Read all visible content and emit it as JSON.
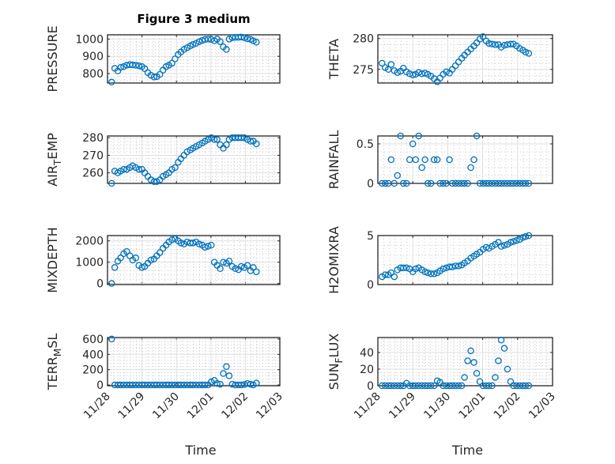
{
  "title": "Figure 3 medium",
  "colors": {
    "marker": "#0072BD",
    "axis": "#262626",
    "grid": "#DFDFDF"
  },
  "chart_data": [
    {
      "type": "scatter",
      "name": "pressure",
      "ylabel": "PRESSURE",
      "xlabel": "",
      "ylim": [
        745,
        1025
      ],
      "yticks": [
        800,
        900,
        1000
      ],
      "grid": true,
      "values": [
        750,
        830,
        815,
        835,
        840,
        848,
        852,
        850,
        848,
        845,
        840,
        828,
        805,
        790,
        780,
        782,
        795,
        820,
        840,
        848,
        860,
        885,
        910,
        925,
        940,
        950,
        960,
        968,
        975,
        985,
        992,
        998,
        1000,
        998,
        990,
        1000,
        985,
        955,
        940,
        1000,
        1008,
        1010,
        1010,
        1012,
        1008,
        1002,
        998,
        990,
        982
      ]
    },
    {
      "type": "scatter",
      "name": "theta",
      "ylabel": "THETA",
      "xlabel": "",
      "ylim": [
        272.8,
        280.6
      ],
      "yticks": [
        275,
        280
      ],
      "grid": true,
      "values": [
        276,
        275.3,
        275,
        275.8,
        274.8,
        274.5,
        274.7,
        275.2,
        274.6,
        274.3,
        274.1,
        274.2,
        274.5,
        274.3,
        274.4,
        274.2,
        273.9,
        273.5,
        273.0,
        273.6,
        274.2,
        274.6,
        274.4,
        275,
        275.6,
        276.2,
        276.8,
        277.3,
        277.8,
        278.3,
        278.8,
        279.3,
        279.9,
        280.3,
        279.6,
        279.2,
        279.1,
        279,
        279,
        278.6,
        278.9,
        279,
        279.1,
        279.1,
        278.8,
        278.4,
        278.1,
        277.8,
        277.6
      ]
    },
    {
      "type": "scatter",
      "name": "air-temp",
      "ylabel": "AIR_TEMP",
      "xlabel": "",
      "ylim": [
        254,
        281
      ],
      "yticks": [
        260,
        270,
        280
      ],
      "grid": true,
      "values": [
        254,
        261,
        260,
        261,
        262,
        262,
        263,
        264,
        263,
        262,
        262,
        260,
        258,
        256,
        255,
        255,
        256,
        258,
        259,
        260,
        262,
        263,
        266,
        268,
        270,
        272,
        273,
        274,
        275,
        276,
        277,
        278,
        279,
        280,
        279,
        279,
        276,
        274,
        276,
        279,
        280,
        280,
        280,
        280,
        280,
        279,
        278,
        278,
        276.5
      ]
    },
    {
      "type": "scatter",
      "name": "rainfall",
      "ylabel": "RAINFALL",
      "xlabel": "",
      "ylim": [
        0,
        0.6
      ],
      "yticks": [
        0,
        0.5
      ],
      "grid": true,
      "values": [
        0,
        0,
        0,
        0.3,
        0,
        0.1,
        0.6,
        0,
        0,
        0.3,
        0.5,
        0.3,
        0.6,
        0.2,
        0.3,
        0,
        0,
        0.3,
        0.3,
        0,
        0,
        0,
        0.3,
        0,
        0,
        0,
        0,
        0,
        0,
        0.2,
        0.3,
        0.6,
        0,
        0,
        0,
        0,
        0,
        0,
        0,
        0,
        0,
        0,
        0,
        0,
        0,
        0,
        0,
        0,
        0
      ]
    },
    {
      "type": "scatter",
      "name": "mixdepth",
      "ylabel": "MIXDEPTH",
      "xlabel": "",
      "ylim": [
        -50,
        2250
      ],
      "yticks": [
        0,
        1000,
        2000
      ],
      "grid": true,
      "values": [
        0,
        750,
        1050,
        1200,
        1400,
        1500,
        1300,
        1100,
        1200,
        850,
        750,
        800,
        950,
        1100,
        1150,
        1300,
        1450,
        1650,
        1800,
        1950,
        2050,
        2100,
        2000,
        1900,
        1850,
        1950,
        1900,
        1900,
        1950,
        1850,
        1800,
        1700,
        1750,
        1800,
        1000,
        850,
        700,
        1000,
        950,
        1050,
        800,
        700,
        650,
        800,
        750,
        850,
        600,
        750,
        550
      ]
    },
    {
      "type": "scatter",
      "name": "h2omixra",
      "ylabel": "H2OMIXRA",
      "xlabel": "",
      "ylim": [
        0,
        5
      ],
      "yticks": [
        0,
        5
      ],
      "grid": true,
      "values": [
        0.8,
        1.0,
        1.0,
        1.2,
        0.8,
        1.5,
        1.7,
        1.7,
        1.7,
        1.6,
        1.3,
        1.6,
        1.7,
        1.5,
        1.3,
        1.2,
        1.1,
        1.1,
        1.2,
        1.4,
        1.6,
        1.7,
        1.8,
        1.8,
        1.9,
        1.9,
        2.0,
        2.2,
        2.4,
        2.7,
        2.9,
        3.1,
        3.3,
        3.6,
        3.8,
        3.7,
        3.9,
        4.1,
        4.3,
        3.9,
        4.0,
        4.1,
        4.3,
        4.4,
        4.5,
        4.6,
        4.8,
        4.9,
        5.0
      ]
    },
    {
      "type": "scatter",
      "name": "terr-msl",
      "ylabel": "TERR_MSL",
      "xlabel": "Time",
      "ylim": [
        -10,
        620
      ],
      "yticks": [
        0,
        200,
        400,
        600
      ],
      "grid": true,
      "values": [
        600,
        0,
        0,
        0,
        0,
        0,
        0,
        0,
        0,
        0,
        0,
        0,
        0,
        0,
        0,
        0,
        0,
        0,
        0,
        0,
        0,
        0,
        0,
        0,
        0,
        0,
        0,
        0,
        0,
        0,
        0,
        0,
        0,
        40,
        60,
        20,
        10,
        150,
        240,
        120,
        10,
        0,
        0,
        0,
        5,
        20,
        10,
        0,
        25
      ]
    },
    {
      "type": "scatter",
      "name": "sun-flux",
      "ylabel": "SUN_FLUX",
      "xlabel": "Time",
      "ylim": [
        0,
        58
      ],
      "yticks": [
        0,
        20,
        40
      ],
      "grid": true,
      "values": [
        0,
        0,
        0,
        0,
        0,
        0,
        0,
        0,
        3,
        0,
        0,
        0,
        0,
        0,
        0,
        0,
        0,
        0,
        6,
        4,
        0,
        0,
        0,
        0,
        0,
        0,
        0,
        10,
        30,
        42,
        28,
        15,
        5,
        0,
        0,
        0,
        0,
        10,
        30,
        55,
        45,
        20,
        5,
        0,
        0,
        0,
        0,
        0,
        0
      ]
    }
  ],
  "time_days_since_11_28": [
    0.12,
    0.21,
    0.3,
    0.38,
    0.47,
    0.56,
    0.65,
    0.73,
    0.82,
    0.91,
    1.0,
    1.08,
    1.17,
    1.26,
    1.35,
    1.43,
    1.52,
    1.61,
    1.7,
    1.78,
    1.87,
    1.96,
    2.05,
    2.13,
    2.22,
    2.31,
    2.4,
    2.48,
    2.57,
    2.66,
    2.75,
    2.83,
    2.92,
    3.01,
    3.1,
    3.18,
    3.27,
    3.36,
    3.45,
    3.53,
    3.62,
    3.71,
    3.8,
    3.88,
    3.97,
    4.06,
    4.15,
    4.23,
    4.32
  ],
  "xlim_days": [
    0,
    5
  ],
  "xtick_labels": [
    "11/28",
    "11/29",
    "11/30",
    "12/01",
    "12/02",
    "12/03"
  ]
}
